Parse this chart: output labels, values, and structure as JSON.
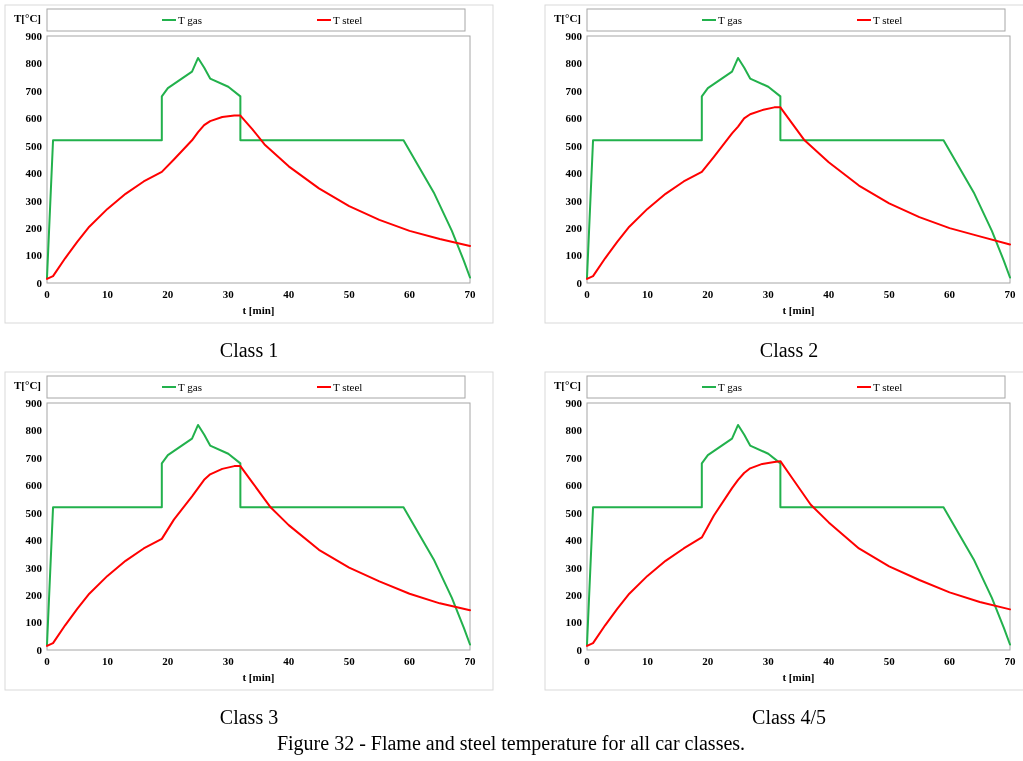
{
  "chart_data": [
    {
      "type": "line",
      "title": "Class 1",
      "xlabel": "t [min]",
      "ylabel": "T[°C]",
      "xlim": [
        0,
        70
      ],
      "ylim": [
        0,
        900
      ],
      "xticks": [
        0,
        10,
        20,
        30,
        40,
        50,
        60,
        70
      ],
      "yticks": [
        0,
        100,
        200,
        300,
        400,
        500,
        600,
        700,
        800,
        900
      ],
      "grid": false,
      "legend": "top",
      "marker": "none",
      "line_style": "solid",
      "series": [
        {
          "name": "T gas",
          "color": "#22b14c",
          "x": [
            0,
            1,
            19,
            19,
            20,
            22,
            24,
            25,
            26,
            27,
            30,
            32,
            32,
            59,
            64,
            67,
            69,
            70
          ],
          "values": [
            20,
            520,
            520,
            680,
            710,
            740,
            770,
            820,
            785,
            745,
            715,
            680,
            520,
            520,
            330,
            190,
            80,
            20
          ]
        },
        {
          "name": "T steel",
          "color": "#ff0000",
          "x": [
            0,
            1,
            3,
            5,
            7,
            10,
            13,
            16,
            19,
            21,
            24,
            25,
            26,
            27,
            29,
            31,
            32,
            34,
            36,
            40,
            45,
            50,
            55,
            60,
            65,
            70
          ],
          "values": [
            15,
            25,
            90,
            150,
            205,
            270,
            325,
            370,
            405,
            450,
            520,
            550,
            575,
            590,
            605,
            610,
            610,
            560,
            505,
            425,
            345,
            280,
            230,
            190,
            160,
            135
          ]
        }
      ]
    },
    {
      "type": "line",
      "title": "Class 2",
      "xlabel": "t [min]",
      "ylabel": "T[°C]",
      "xlim": [
        0,
        70
      ],
      "ylim": [
        0,
        900
      ],
      "xticks": [
        0,
        10,
        20,
        30,
        40,
        50,
        60,
        70
      ],
      "yticks": [
        0,
        100,
        200,
        300,
        400,
        500,
        600,
        700,
        800,
        900
      ],
      "grid": false,
      "legend": "top",
      "marker": "none",
      "line_style": "solid",
      "series": [
        {
          "name": "T gas",
          "color": "#22b14c",
          "x": [
            0,
            1,
            19,
            19,
            20,
            22,
            24,
            25,
            26,
            27,
            30,
            32,
            32,
            59,
            64,
            67,
            69,
            70
          ],
          "values": [
            20,
            520,
            520,
            680,
            710,
            740,
            770,
            820,
            785,
            745,
            715,
            680,
            520,
            520,
            330,
            190,
            80,
            20
          ]
        },
        {
          "name": "T steel",
          "color": "#ff0000",
          "x": [
            0,
            1,
            3,
            5,
            7,
            10,
            13,
            16,
            19,
            21,
            24,
            25,
            26,
            27,
            29,
            31,
            32,
            34,
            36,
            40,
            45,
            50,
            55,
            60,
            65,
            70
          ],
          "values": [
            15,
            25,
            90,
            150,
            205,
            270,
            325,
            370,
            405,
            460,
            545,
            570,
            600,
            615,
            630,
            640,
            640,
            580,
            520,
            440,
            355,
            290,
            240,
            200,
            170,
            140
          ]
        }
      ]
    },
    {
      "type": "line",
      "title": "Class 3",
      "xlabel": "t [min]",
      "ylabel": "T[°C]",
      "xlim": [
        0,
        70
      ],
      "ylim": [
        0,
        900
      ],
      "xticks": [
        0,
        10,
        20,
        30,
        40,
        50,
        60,
        70
      ],
      "yticks": [
        0,
        100,
        200,
        300,
        400,
        500,
        600,
        700,
        800,
        900
      ],
      "grid": false,
      "legend": "top",
      "marker": "none",
      "line_style": "solid",
      "series": [
        {
          "name": "T gas",
          "color": "#22b14c",
          "x": [
            0,
            1,
            19,
            19,
            20,
            22,
            24,
            25,
            26,
            27,
            30,
            32,
            32,
            59,
            64,
            67,
            69,
            70
          ],
          "values": [
            20,
            520,
            520,
            680,
            710,
            740,
            770,
            820,
            785,
            745,
            715,
            680,
            520,
            520,
            330,
            190,
            80,
            20
          ]
        },
        {
          "name": "T steel",
          "color": "#ff0000",
          "x": [
            0,
            1,
            3,
            5,
            7,
            10,
            13,
            16,
            19,
            21,
            24,
            25,
            26,
            27,
            29,
            31,
            32,
            34,
            37,
            40,
            45,
            50,
            55,
            60,
            65,
            70
          ],
          "values": [
            15,
            25,
            90,
            150,
            205,
            270,
            325,
            370,
            405,
            475,
            560,
            590,
            620,
            640,
            660,
            670,
            670,
            610,
            520,
            455,
            365,
            300,
            250,
            205,
            170,
            145
          ]
        }
      ]
    },
    {
      "type": "line",
      "title": "Class 4/5",
      "xlabel": "t [min]",
      "ylabel": "T[°C]",
      "xlim": [
        0,
        70
      ],
      "ylim": [
        0,
        900
      ],
      "xticks": [
        0,
        10,
        20,
        30,
        40,
        50,
        60,
        70
      ],
      "yticks": [
        0,
        100,
        200,
        300,
        400,
        500,
        600,
        700,
        800,
        900
      ],
      "grid": false,
      "legend": "top",
      "marker": "none",
      "line_style": "solid",
      "annotations": [
        "Figure 32 - Flame and steel temperature for all car classes."
      ],
      "series": [
        {
          "name": "T gas",
          "color": "#22b14c",
          "x": [
            0,
            1,
            19,
            19,
            20,
            22,
            24,
            25,
            26,
            27,
            30,
            32,
            32,
            59,
            64,
            67,
            69,
            70
          ],
          "values": [
            20,
            520,
            520,
            680,
            710,
            740,
            770,
            820,
            785,
            745,
            715,
            680,
            520,
            520,
            330,
            190,
            80,
            20
          ]
        },
        {
          "name": "T steel",
          "color": "#ff0000",
          "x": [
            0,
            1,
            3,
            5,
            7,
            10,
            13,
            16,
            19,
            21,
            24,
            25,
            26,
            27,
            29,
            31,
            32,
            34,
            37,
            40,
            45,
            50,
            55,
            60,
            65,
            70
          ],
          "values": [
            15,
            25,
            90,
            150,
            205,
            270,
            325,
            370,
            410,
            490,
            590,
            620,
            645,
            662,
            678,
            685,
            688,
            625,
            530,
            465,
            370,
            305,
            255,
            210,
            175,
            148
          ]
        }
      ]
    }
  ]
}
